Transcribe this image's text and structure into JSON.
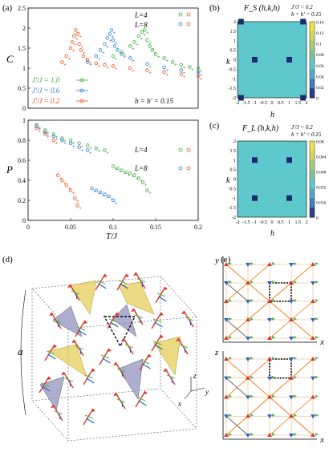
{
  "panels": {
    "a": "(a)",
    "b": "(b)",
    "c": "(c)",
    "d": "(d)",
    "e": "(e)"
  },
  "chart_data": [
    {
      "type": "scatter",
      "panel": "a-top",
      "ylabel": "C",
      "xlim": [
        0,
        0.2
      ],
      "ylim": [
        0,
        2.5
      ],
      "yticks": [
        "0",
        "0.5",
        "1",
        "1.5",
        "2",
        "2.5"
      ],
      "L_legend": [
        "L=4",
        "L=8"
      ],
      "series_legend": [
        "J'/J = 1.0",
        "J'/J = 0.6",
        "J'/J = 0.2"
      ],
      "annotation": "b = b' = 0.15",
      "series": [
        {
          "name": "J'/J = 0.2",
          "color": "#e8541c",
          "x": [
            0.04,
            0.045,
            0.05,
            0.052,
            0.054,
            0.056,
            0.058,
            0.06,
            0.062,
            0.065,
            0.07,
            0.08,
            0.09,
            0.1,
            0.12,
            0.14,
            0.16,
            0.18,
            0.2
          ],
          "y": [
            1.15,
            1.3,
            1.5,
            1.65,
            1.8,
            1.95,
            1.85,
            1.6,
            1.45,
            1.3,
            1.2,
            1.12,
            1.08,
            1.05,
            1.0,
            0.95,
            0.9,
            0.85,
            0.8
          ]
        },
        {
          "name": "J'/J = 0.6",
          "color": "#2d7bd6",
          "x": [
            0.07,
            0.08,
            0.085,
            0.09,
            0.093,
            0.096,
            0.098,
            0.1,
            0.102,
            0.105,
            0.11,
            0.12,
            0.14,
            0.16,
            0.18,
            0.2
          ],
          "y": [
            1.15,
            1.3,
            1.45,
            1.6,
            1.75,
            1.85,
            1.95,
            1.7,
            1.55,
            1.45,
            1.35,
            1.25,
            1.1,
            1.02,
            0.95,
            0.9
          ]
        },
        {
          "name": "J'/J = 1.0",
          "color": "#3aa83a",
          "x": [
            0.1,
            0.11,
            0.12,
            0.125,
            0.13,
            0.134,
            0.137,
            0.14,
            0.143,
            0.146,
            0.15,
            0.16,
            0.17,
            0.18,
            0.19,
            0.2
          ],
          "y": [
            1.3,
            1.4,
            1.55,
            1.65,
            1.8,
            1.9,
            1.95,
            1.7,
            1.55,
            1.45,
            1.35,
            1.25,
            1.15,
            1.08,
            1.03,
            1.0
          ]
        }
      ]
    },
    {
      "type": "scatter",
      "panel": "a-bottom",
      "ylabel": "P",
      "xlabel": "T/J",
      "xlim": [
        0,
        0.2
      ],
      "ylim": [
        0,
        1
      ],
      "xticks": [
        "0",
        "0.05",
        "0.1",
        "0.15",
        "0.2"
      ],
      "yticks": [
        "0",
        "0.2",
        "0.4",
        "0.6",
        "0.8",
        "1"
      ],
      "L_legend": [
        "L=4",
        "L=8"
      ],
      "series": [
        {
          "name": "J'/J = 1.0",
          "color": "#3aa83a",
          "x": [
            0.01,
            0.02,
            0.03,
            0.04,
            0.05,
            0.06,
            0.07,
            0.08,
            0.09,
            0.1,
            0.105,
            0.11,
            0.115,
            0.12,
            0.125,
            0.13,
            0.135,
            0.14
          ],
          "y": [
            0.95,
            0.9,
            0.86,
            0.82,
            0.8,
            0.77,
            0.75,
            0.72,
            0.7,
            0.54,
            0.52,
            0.5,
            0.48,
            0.47,
            0.45,
            0.42,
            0.38,
            0.3
          ]
        },
        {
          "name": "J'/J = 0.6",
          "color": "#2d7bd6",
          "x": [
            0.01,
            0.02,
            0.03,
            0.04,
            0.05,
            0.06,
            0.07,
            0.075,
            0.08,
            0.085,
            0.09,
            0.095,
            0.1
          ],
          "y": [
            0.94,
            0.88,
            0.84,
            0.8,
            0.77,
            0.73,
            0.7,
            0.32,
            0.3,
            0.28,
            0.26,
            0.24,
            0.2
          ]
        },
        {
          "name": "J'/J = 0.2",
          "color": "#e8541c",
          "x": [
            0.01,
            0.02,
            0.03,
            0.035,
            0.04,
            0.045,
            0.05,
            0.055,
            0.058
          ],
          "y": [
            0.92,
            0.86,
            0.8,
            0.45,
            0.4,
            0.35,
            0.3,
            0.22,
            0.15
          ]
        }
      ]
    }
  ],
  "b": {
    "title": "F_S (h,k,h)",
    "params1": "J'/J = 0.2",
    "params2": "b = b' = 0.15",
    "xlabel": "h",
    "ylabel": "k",
    "ticks": [
      "-2",
      "-1.5",
      "-1",
      "-0.5",
      "0",
      "0.5",
      "1",
      "1.5",
      "2"
    ],
    "yticks": [
      "2",
      "1.5",
      "1",
      "0.5",
      "0",
      "-0.5",
      "-1",
      "-1.5",
      "-2"
    ],
    "colorbar": [
      "0.14",
      "0.12",
      "0.1",
      "0.08",
      "0.06",
      "0.04",
      "0.02",
      "0"
    ]
  },
  "c": {
    "title": "F_L (h,k,h)",
    "params1": "J'/J = 0.2",
    "params2": "b = b' = 0.15",
    "xlabel": "h",
    "ylabel": "k",
    "ticks": [
      "-2",
      "-1.5",
      "-1",
      "-0.5",
      "0",
      "0.5",
      "1",
      "1.5",
      "2"
    ],
    "yticks": [
      "2",
      "1.5",
      "1",
      "0.5",
      "0",
      "-0.5",
      "-1",
      "-1.5",
      "-2"
    ],
    "colorbar": [
      "0.08",
      "0.064",
      "0.048",
      "0.032",
      "0.016",
      "0"
    ]
  },
  "d": {
    "a_label": "a",
    "axes": [
      "z",
      "y",
      "x"
    ]
  },
  "e": {
    "top_axes": [
      "y",
      "x"
    ],
    "bottom_axes": [
      "z",
      "x"
    ]
  }
}
